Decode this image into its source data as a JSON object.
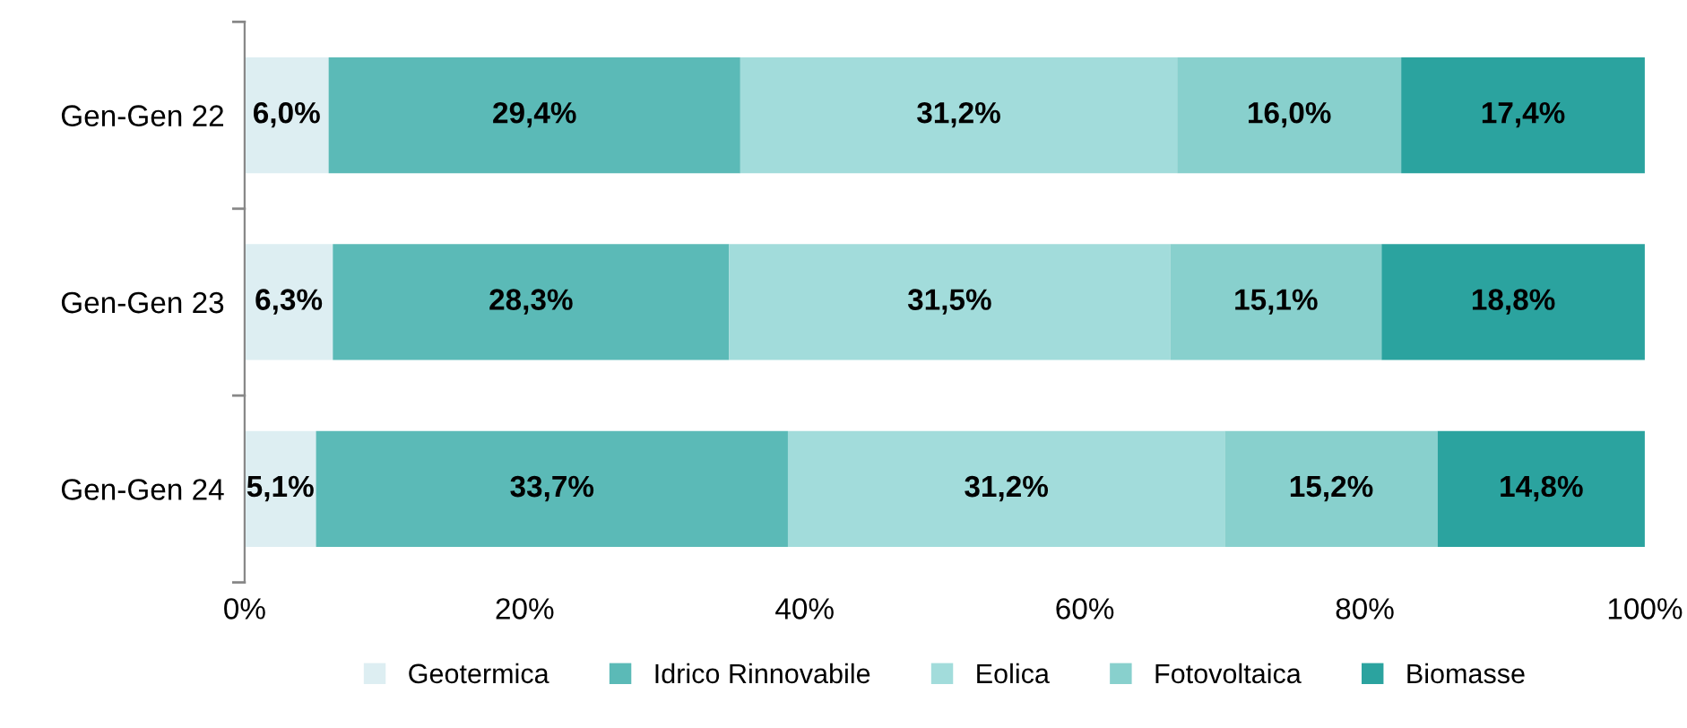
{
  "chart_data": {
    "type": "bar",
    "orientation": "horizontal",
    "stacked": true,
    "categories": [
      "Gen-Gen 22",
      "Gen-Gen 23",
      "Gen-Gen 24"
    ],
    "series": [
      {
        "name": "Geotermica",
        "color": "#ddeef2",
        "values": [
          6.0,
          6.3,
          5.1
        ],
        "value_labels": [
          "6,0%",
          "6,3%",
          "5,1%"
        ]
      },
      {
        "name": "Idrico Rinnovabile",
        "color": "#5bbab7",
        "values": [
          29.4,
          28.3,
          33.7
        ],
        "value_labels": [
          "29,4%",
          "28,3%",
          "33,7%"
        ]
      },
      {
        "name": "Eolica",
        "color": "#a2dcdb",
        "values": [
          31.2,
          31.5,
          31.2
        ],
        "value_labels": [
          "31,2%",
          "31,5%",
          "31,2%"
        ]
      },
      {
        "name": "Fotovoltaica",
        "color": "#88d0cd",
        "values": [
          16.0,
          15.1,
          15.2
        ],
        "value_labels": [
          "16,0%",
          "15,1%",
          "15,2%"
        ]
      },
      {
        "name": "Biomasse",
        "color": "#2ba39f",
        "values": [
          17.4,
          18.8,
          14.8
        ],
        "value_labels": [
          "17,4%",
          "18,8%",
          "14,8%"
        ]
      }
    ],
    "xlim": [
      0,
      100
    ],
    "xticks": [
      {
        "value": 0,
        "label": "0%"
      },
      {
        "value": 20,
        "label": "20%"
      },
      {
        "value": 40,
        "label": "40%"
      },
      {
        "value": 60,
        "label": "60%"
      },
      {
        "value": 80,
        "label": "80%"
      },
      {
        "value": 100,
        "label": "100%"
      }
    ],
    "grid": false,
    "legend": "bottom"
  }
}
